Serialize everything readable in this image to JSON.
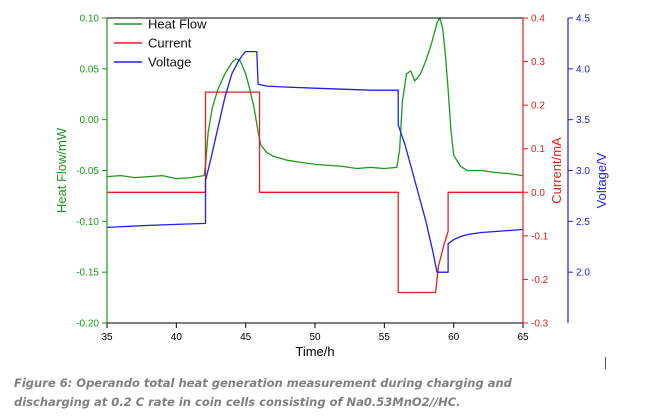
{
  "chart_data": {
    "type": "line",
    "xlabel": "Time/h",
    "xlim": [
      35,
      65
    ],
    "xticks": [
      35,
      40,
      45,
      50,
      55,
      60,
      65
    ],
    "grid": false,
    "legend_position": "top-left",
    "axes": {
      "left": {
        "label": "Heat Flow/mW",
        "color": "#1a9a1a",
        "ylim": [
          -0.2,
          0.1
        ],
        "ticks": [
          -0.2,
          -0.15,
          -0.1,
          -0.05,
          0.0,
          0.05,
          0.1
        ],
        "tick_labels": [
          "-0.20",
          "-0.15",
          "-0.10",
          "-0.05",
          "0.00",
          "0.05",
          "0.10"
        ]
      },
      "right1": {
        "label": "Current/mA",
        "color": "#e02020",
        "ylim": [
          -0.3,
          0.4
        ],
        "ticks": [
          -0.3,
          -0.2,
          -0.1,
          0.0,
          0.1,
          0.2,
          0.3,
          0.4
        ],
        "tick_labels": [
          "-0.3",
          "-0.2",
          "-0.1",
          "0.0",
          "0.1",
          "0.2",
          "0.3",
          "0.4"
        ]
      },
      "right2": {
        "label": "Voltage/V",
        "color": "#2020e0",
        "ylim": [
          1.5,
          4.5
        ],
        "ticks": [
          2.0,
          2.5,
          3.0,
          3.5,
          4.0,
          4.5
        ],
        "tick_labels": [
          "2.0",
          "2.5",
          "3.0",
          "3.5",
          "4.0",
          "4.5"
        ]
      }
    },
    "series": [
      {
        "name": "Heat Flow",
        "axis": "left",
        "color": "#1a9a1a",
        "x": [
          35,
          36,
          37,
          38,
          39,
          40,
          41,
          42,
          42.1,
          42.3,
          42.6,
          43,
          43.5,
          44,
          44.3,
          44.6,
          45,
          45.3,
          45.6,
          45.9,
          46.1,
          46.5,
          47,
          48,
          49,
          50,
          51,
          52,
          53,
          54,
          55,
          55.9,
          56.1,
          56.3,
          56.6,
          56.9,
          57.2,
          57.6,
          58,
          58.4,
          58.8,
          59.0,
          59.2,
          59.4,
          59.6,
          59.8,
          60.0,
          60.5,
          61,
          62,
          63,
          64,
          65
        ],
        "y": [
          -0.056,
          -0.055,
          -0.057,
          -0.056,
          -0.055,
          -0.058,
          -0.057,
          -0.055,
          -0.045,
          -0.012,
          0.012,
          0.03,
          0.045,
          0.056,
          0.06,
          0.058,
          0.045,
          0.03,
          0.012,
          -0.012,
          -0.025,
          -0.032,
          -0.036,
          -0.04,
          -0.042,
          -0.044,
          -0.045,
          -0.046,
          -0.048,
          -0.047,
          -0.048,
          -0.047,
          -0.03,
          0.018,
          0.045,
          0.048,
          0.038,
          0.045,
          0.058,
          0.075,
          0.095,
          0.1,
          0.09,
          0.065,
          0.03,
          -0.01,
          -0.035,
          -0.046,
          -0.05,
          -0.05,
          -0.052,
          -0.053,
          -0.055
        ]
      },
      {
        "name": "Current",
        "axis": "right1",
        "color": "#e02020",
        "x": [
          35,
          42.1,
          42.1,
          46.0,
          46.0,
          56.0,
          56.0,
          58.7,
          58.9,
          59.3,
          59.6,
          59.6,
          65
        ],
        "y": [
          0.0,
          0.0,
          0.23,
          0.23,
          0.0,
          0.0,
          -0.23,
          -0.23,
          -0.17,
          -0.12,
          -0.09,
          0.0,
          0.0
        ]
      },
      {
        "name": "Voltage",
        "axis": "right2",
        "color": "#2020e0",
        "x": [
          35,
          38,
          40,
          42.1,
          42.1,
          42.5,
          43,
          43.5,
          44,
          44.5,
          44.8,
          45.0,
          45.8,
          45.9,
          46.5,
          48,
          50,
          52,
          54,
          56.0,
          56.0,
          56.5,
          57,
          57.5,
          58,
          58.5,
          58.8,
          59.6,
          59.6,
          60,
          60.5,
          61,
          62,
          63,
          64,
          65
        ],
        "y": [
          2.44,
          2.46,
          2.47,
          2.48,
          2.9,
          3.12,
          3.42,
          3.72,
          3.95,
          4.08,
          4.14,
          4.17,
          4.17,
          3.85,
          3.83,
          3.82,
          3.81,
          3.8,
          3.79,
          3.79,
          3.45,
          3.25,
          3.0,
          2.75,
          2.5,
          2.2,
          2.0,
          2.0,
          2.28,
          2.32,
          2.35,
          2.37,
          2.39,
          2.4,
          2.41,
          2.42
        ]
      }
    ]
  },
  "caption": {
    "line1": "Figure 6: Operando total heat generation measurement during charging and",
    "line2": "discharging at 0.2 C rate in coin cells consisting of Na0.53MnO2//HC."
  }
}
